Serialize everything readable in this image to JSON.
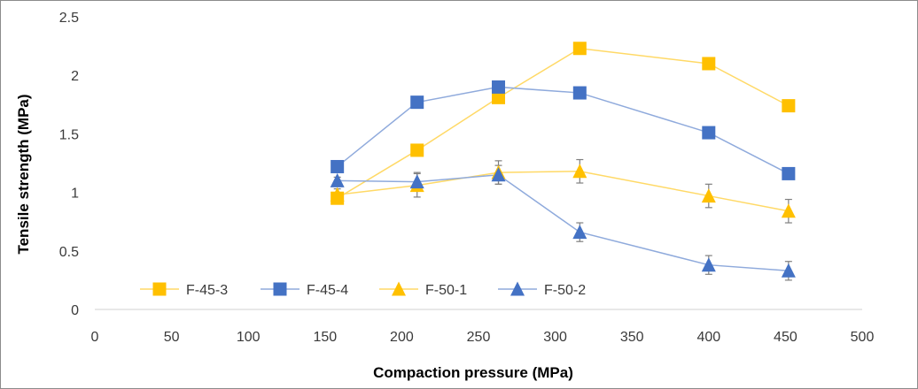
{
  "chart_data": {
    "type": "scatter",
    "title": "",
    "xlabel": "Compaction pressure (MPa)",
    "ylabel": "Tensile strength (MPa)",
    "xlim": [
      0,
      500
    ],
    "ylim": [
      0,
      2.5
    ],
    "x_ticks": [
      "0",
      "50",
      "100",
      "150",
      "200",
      "250",
      "300",
      "350",
      "400",
      "450",
      "500"
    ],
    "y_ticks": [
      "0",
      "0.5",
      "1",
      "1.5",
      "2",
      "2.5"
    ],
    "grid": false,
    "legend_position": "bottom-left",
    "series": [
      {
        "name": "F-45-3",
        "marker": "square",
        "color": "#FFC000",
        "line_color": "#FFD966",
        "x": [
          158,
          210,
          263,
          316,
          400,
          452
        ],
        "y": [
          0.95,
          1.36,
          1.81,
          2.23,
          2.1,
          1.74
        ],
        "error": [
          0,
          0,
          0,
          0,
          0,
          0
        ]
      },
      {
        "name": "F-45-4",
        "marker": "square",
        "color": "#4472C4",
        "line_color": "#8FAADC",
        "x": [
          158,
          210,
          263,
          316,
          400,
          452
        ],
        "y": [
          1.22,
          1.77,
          1.9,
          1.85,
          1.51,
          1.16
        ],
        "error": [
          0,
          0,
          0,
          0,
          0,
          0
        ]
      },
      {
        "name": "F-50-1",
        "marker": "triangle",
        "color": "#FFC000",
        "line_color": "#FFD966",
        "x": [
          158,
          210,
          263,
          316,
          400,
          452
        ],
        "y": [
          0.98,
          1.06,
          1.17,
          1.18,
          0.97,
          0.84
        ],
        "error": [
          0.05,
          0.1,
          0.1,
          0.1,
          0.1,
          0.1
        ]
      },
      {
        "name": "F-50-2",
        "marker": "triangle",
        "color": "#4472C4",
        "line_color": "#8FAADC",
        "x": [
          158,
          210,
          263,
          316,
          400,
          452
        ],
        "y": [
          1.1,
          1.09,
          1.15,
          0.66,
          0.38,
          0.33
        ],
        "error": [
          0.03,
          0.08,
          0.08,
          0.08,
          0.08,
          0.08
        ]
      }
    ]
  }
}
